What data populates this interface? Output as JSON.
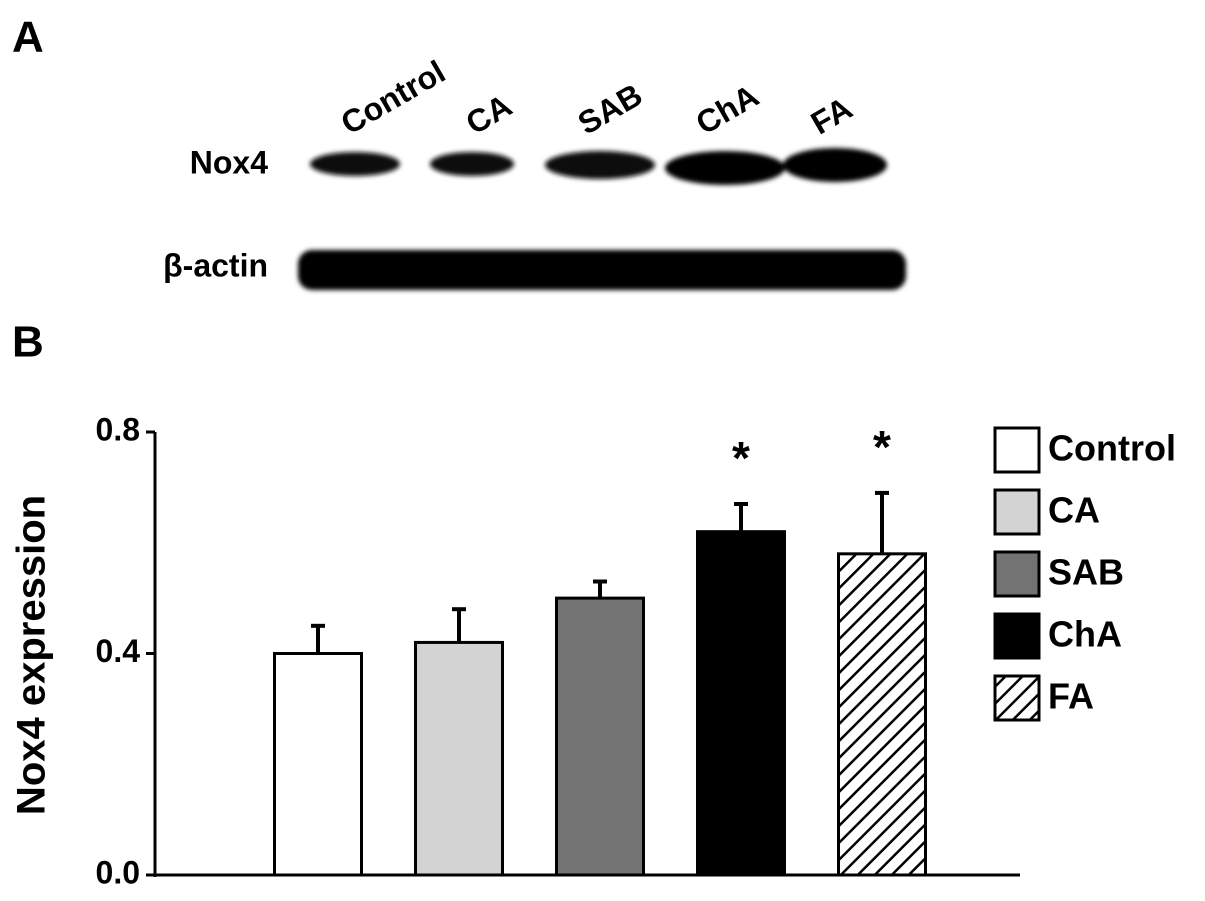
{
  "panel_a": {
    "label": "A",
    "lanes": [
      "Control",
      "CA",
      "SAB",
      "ChA",
      "FA"
    ],
    "rows": [
      "Nox4",
      "β-actin"
    ]
  },
  "chart_data": {
    "type": "bar",
    "panel_label": "B",
    "ylabel": "Nox4 expression",
    "categories": [
      "Control",
      "CA",
      "SAB",
      "ChA",
      "FA"
    ],
    "values": [
      0.4,
      0.42,
      0.5,
      0.62,
      0.58
    ],
    "errors": [
      0.05,
      0.06,
      0.03,
      0.05,
      0.11
    ],
    "colors": [
      "#ffffff",
      "#d3d3d3",
      "#737373",
      "#000000",
      "#ffffff"
    ],
    "hatch": [
      false,
      false,
      false,
      false,
      true
    ],
    "value_annotations": [
      null,
      null,
      null,
      "*",
      "*"
    ],
    "ylim": [
      0,
      0.8
    ],
    "yticks": [
      {
        "value": 0,
        "label": "0.0"
      },
      0.4,
      0.8
    ],
    "legend": "right"
  }
}
